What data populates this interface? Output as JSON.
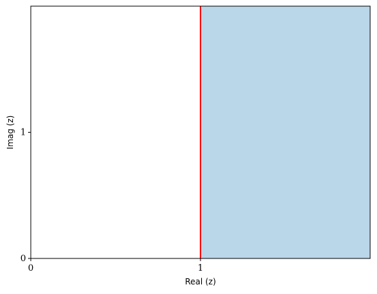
{
  "chart_data": {
    "type": "area",
    "xlabel": "Real (z)",
    "ylabel": "Imag (z)",
    "xlim": [
      0,
      2
    ],
    "ylim": [
      0,
      2
    ],
    "x_ticks": [
      0,
      1
    ],
    "y_ticks": [
      0,
      1
    ],
    "x_tick_labels": [
      "0",
      "1"
    ],
    "y_tick_labels": [
      "0",
      "1"
    ],
    "shaded_region": {
      "x_from": 1,
      "x_to": 2,
      "y_from": 0,
      "y_to": 2,
      "color": "#bad6e9"
    },
    "vertical_line": {
      "x": 1,
      "color": "#ff0000"
    },
    "grid": false,
    "legend": false
  }
}
